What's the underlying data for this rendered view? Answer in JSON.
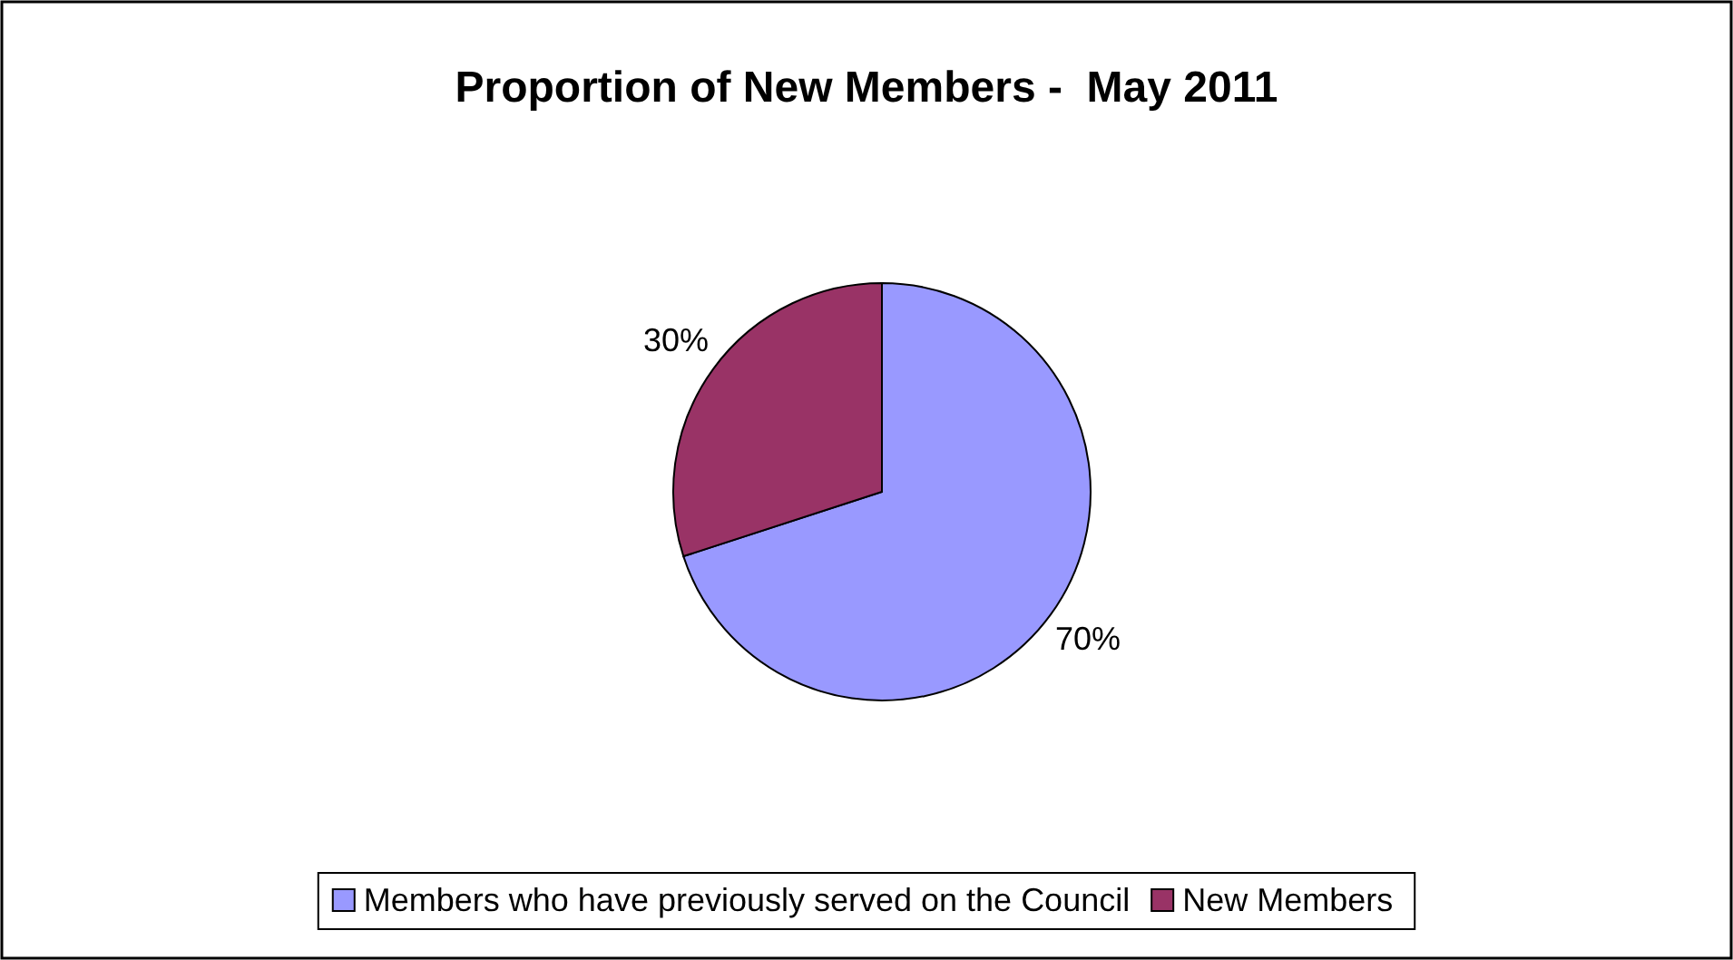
{
  "chart_data": {
    "type": "pie",
    "title": "Proportion of New Members -  May 2011",
    "categories": [
      "Members who have previously served on the Council",
      "New Members"
    ],
    "values": [
      70,
      30
    ],
    "colors": [
      "#9999ff",
      "#993366"
    ],
    "value_labels": [
      "70%",
      "30%"
    ],
    "legend": "bottom"
  }
}
